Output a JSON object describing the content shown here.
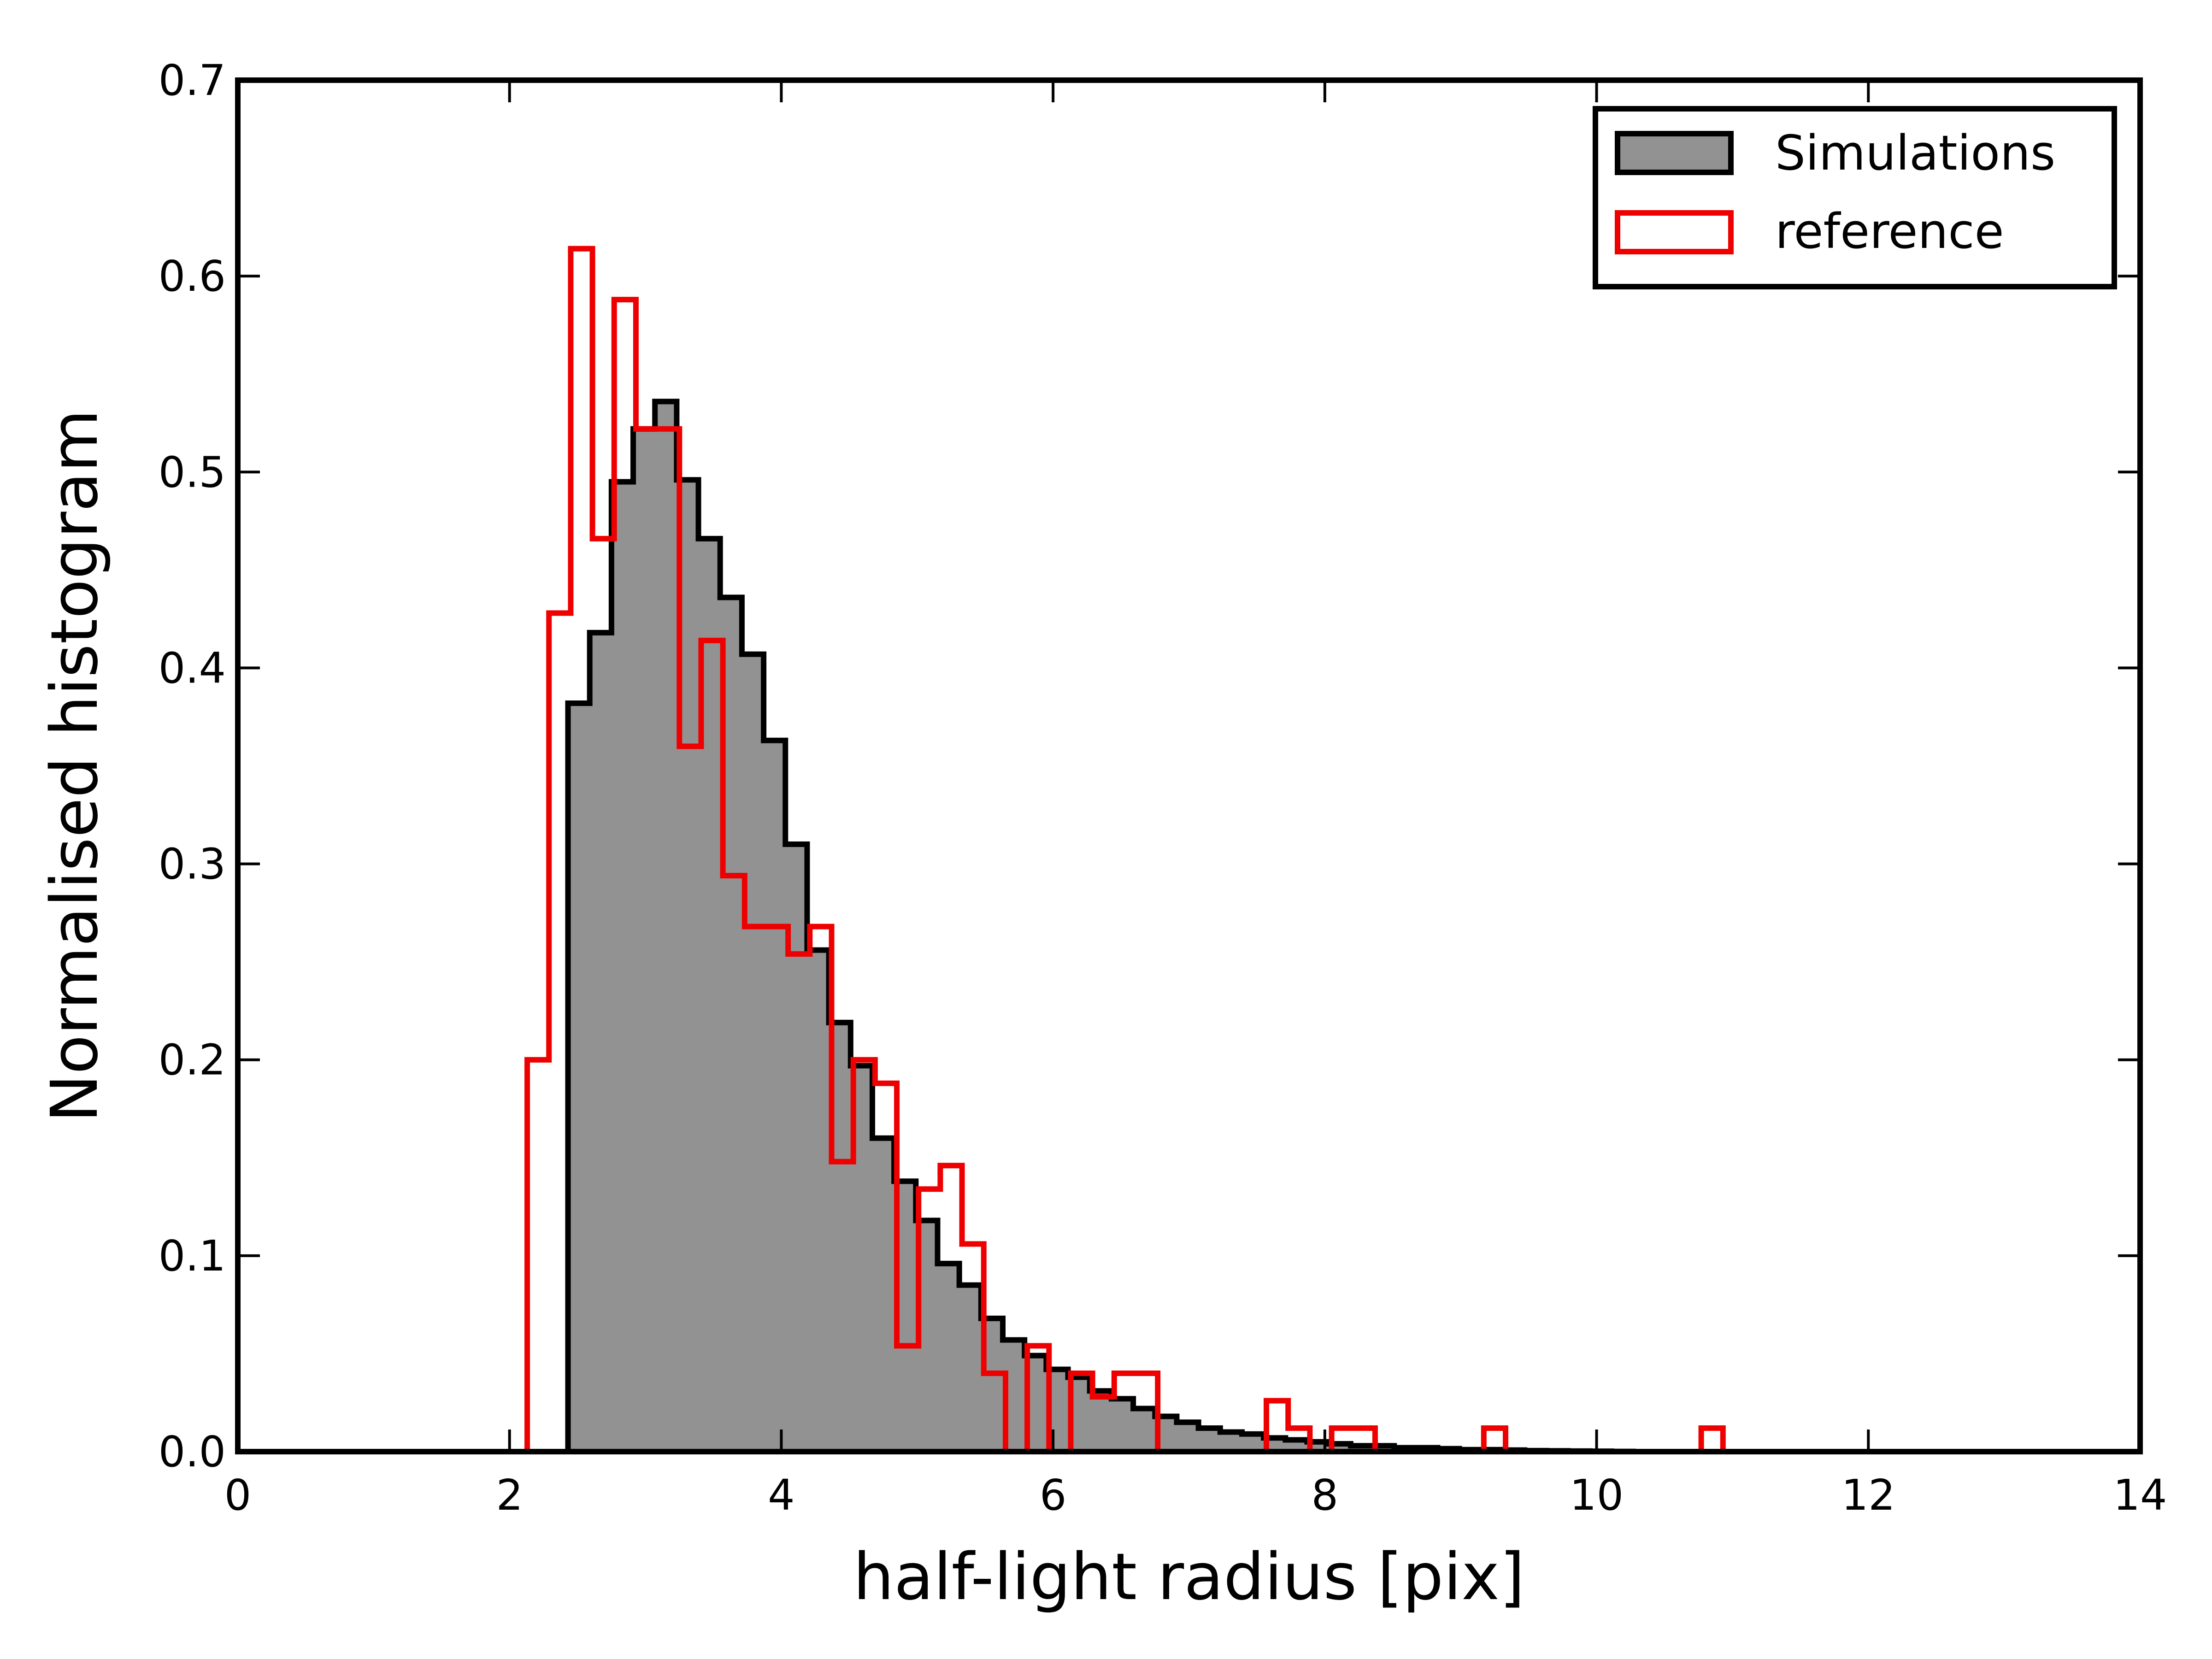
{
  "chart_data": {
    "type": "histogram",
    "title": "",
    "xlabel": "half-light radius [pix]",
    "ylabel": "Normalised histogram",
    "xlim": [
      0,
      14
    ],
    "ylim": [
      0,
      0.7
    ],
    "xticks": [
      "0",
      "2",
      "4",
      "6",
      "8",
      "10",
      "12",
      "14"
    ],
    "yticks": [
      "0.0",
      "0.1",
      "0.2",
      "0.3",
      "0.4",
      "0.5",
      "0.6",
      "0.7"
    ],
    "grid": false,
    "legend_position": "top-right",
    "series": [
      {
        "name": "Simulations",
        "style": "filled step",
        "fill_color": "#929292",
        "edge_color": "#000000",
        "bin_start": 2.43,
        "bin_width": 0.16,
        "values": [
          0.382,
          0.418,
          0.495,
          0.522,
          0.536,
          0.496,
          0.466,
          0.436,
          0.407,
          0.363,
          0.31,
          0.256,
          0.219,
          0.197,
          0.16,
          0.138,
          0.118,
          0.096,
          0.085,
          0.068,
          0.057,
          0.049,
          0.042,
          0.038,
          0.031,
          0.027,
          0.022,
          0.018,
          0.015,
          0.012,
          0.01,
          0.009,
          0.007,
          0.006,
          0.005,
          0.004,
          0.003,
          0.003,
          0.002,
          0.002,
          0.0015,
          0.001,
          0.001,
          0.0008,
          0.0005,
          0.0004,
          0.0003,
          0.0002,
          0.0001
        ]
      },
      {
        "name": "reference",
        "style": "open step",
        "edge_color": "#ee0000",
        "bin_start": 2.13,
        "bin_width": 0.16,
        "values": [
          0.2,
          0.428,
          0.614,
          0.466,
          0.588,
          0.522,
          0.522,
          0.36,
          0.414,
          0.294,
          0.268,
          0.268,
          0.254,
          0.268,
          0.148,
          0.2,
          0.188,
          0.054,
          0.134,
          0.146,
          0.106,
          0.04,
          0.0,
          0.054,
          0.0,
          0.04,
          0.028,
          0.04,
          0.04,
          0.0,
          0.0,
          0.0,
          0.0,
          0.0,
          0.026,
          0.012,
          0.0,
          0.012,
          0.012,
          0.0,
          0.0,
          0.0,
          0.0,
          0.0,
          0.012,
          0.0,
          0.0,
          0.0,
          0.0,
          0.0,
          0.0,
          0.0,
          0.0,
          0.0,
          0.012
        ]
      }
    ]
  }
}
